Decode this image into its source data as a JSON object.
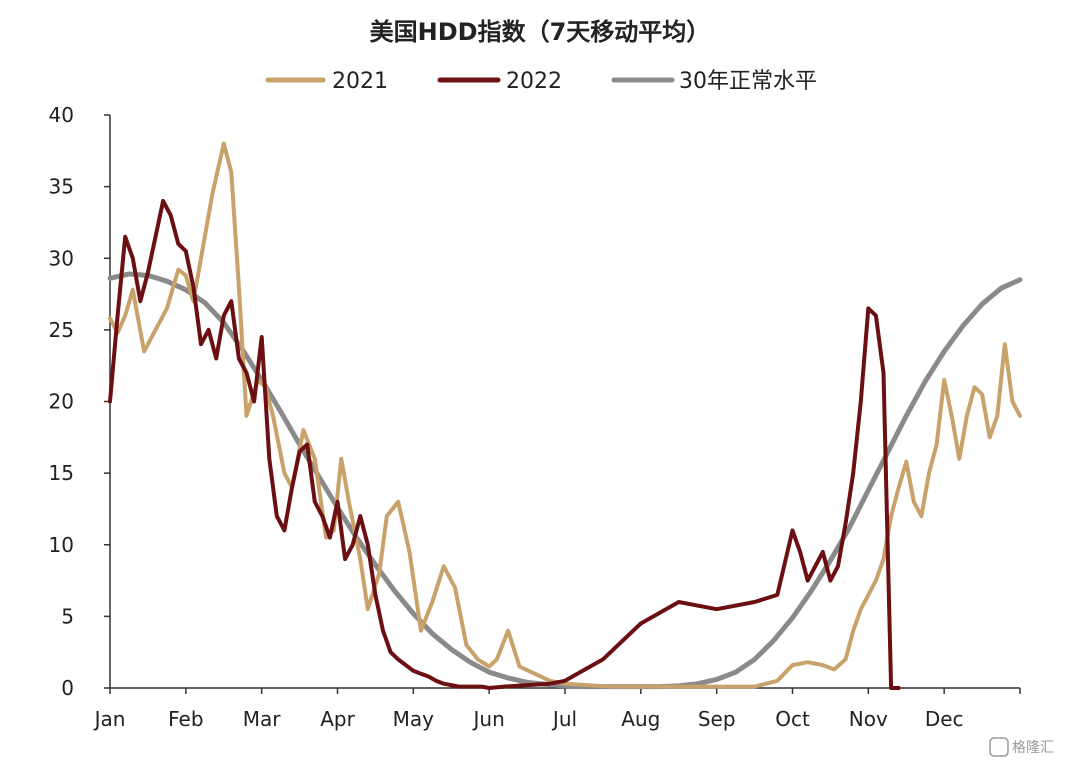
{
  "chart_data": {
    "type": "line",
    "title": "美国HDD指数（7天移动平均）",
    "xlabel": "",
    "ylabel": "",
    "ylim": [
      0,
      40
    ],
    "yticks": [
      "0",
      "5",
      "10",
      "15",
      "20",
      "25",
      "30",
      "35",
      "40"
    ],
    "x_axis": {
      "domain": [
        0,
        12
      ],
      "unit": "month"
    },
    "categories": [
      "Jan",
      "Feb",
      "Mar",
      "Apr",
      "May",
      "Jun",
      "Jul",
      "Aug",
      "Sep",
      "Oct",
      "Nov",
      "Dec"
    ],
    "legend_position": "top-center",
    "grid": false,
    "series": [
      {
        "name": "2021",
        "color": "#c8a26a",
        "x": [
          0.0,
          0.1,
          0.2,
          0.3,
          0.45,
          0.6,
          0.75,
          0.9,
          1.0,
          1.1,
          1.2,
          1.35,
          1.5,
          1.6,
          1.7,
          1.8,
          1.95,
          2.05,
          2.15,
          2.3,
          2.4,
          2.55,
          2.7,
          2.85,
          2.95,
          3.05,
          3.15,
          3.3,
          3.4,
          3.55,
          3.65,
          3.8,
          3.95,
          4.1,
          4.25,
          4.4,
          4.55,
          4.7,
          4.85,
          5.0,
          5.1,
          5.25,
          5.4,
          5.6,
          5.8,
          6.0,
          6.3,
          6.6,
          7.0,
          7.5,
          8.0,
          8.5,
          8.8,
          9.0,
          9.2,
          9.4,
          9.55,
          9.7,
          9.8,
          9.9,
          10.0,
          10.1,
          10.2,
          10.3,
          10.4,
          10.5,
          10.6,
          10.7,
          10.8,
          10.9,
          11.0,
          11.1,
          11.2,
          11.3,
          11.4,
          11.5,
          11.6,
          11.7,
          11.8,
          11.9,
          12.0
        ],
        "values": [
          25.8,
          24.8,
          26.0,
          27.8,
          23.5,
          25.0,
          26.5,
          29.2,
          28.8,
          27.0,
          30.0,
          34.5,
          38.0,
          36.0,
          28.0,
          19.0,
          21.5,
          21.0,
          19.0,
          15.0,
          14.0,
          18.0,
          16.0,
          10.5,
          11.0,
          16.0,
          13.0,
          9.0,
          5.5,
          8.0,
          12.0,
          13.0,
          9.5,
          4.0,
          6.0,
          8.5,
          7.0,
          3.0,
          2.0,
          1.5,
          2.0,
          4.0,
          1.5,
          1.0,
          0.5,
          0.3,
          0.2,
          0.1,
          0.1,
          0.1,
          0.1,
          0.1,
          0.5,
          1.6,
          1.8,
          1.6,
          1.3,
          2.0,
          4.0,
          5.5,
          6.5,
          7.5,
          9.0,
          12.0,
          14.0,
          15.8,
          13.0,
          12.0,
          15.0,
          17.0,
          21.5,
          19.0,
          16.0,
          19.0,
          21.0,
          20.5,
          17.5,
          19.0,
          24.0,
          20.0,
          19.0
        ]
      },
      {
        "name": "2022",
        "color": "#6b0f12",
        "x": [
          0.0,
          0.1,
          0.2,
          0.3,
          0.4,
          0.5,
          0.6,
          0.7,
          0.8,
          0.9,
          1.0,
          1.1,
          1.2,
          1.3,
          1.4,
          1.5,
          1.6,
          1.7,
          1.8,
          1.9,
          2.0,
          2.1,
          2.2,
          2.3,
          2.4,
          2.5,
          2.6,
          2.7,
          2.8,
          2.9,
          3.0,
          3.1,
          3.2,
          3.3,
          3.4,
          3.5,
          3.6,
          3.7,
          3.8,
          3.9,
          4.0,
          4.1,
          4.2,
          4.3,
          4.4,
          4.5,
          4.6,
          4.7,
          4.8,
          4.9,
          5.0,
          5.2,
          5.5,
          5.8,
          6.0,
          6.5,
          7.0,
          7.5,
          8.0,
          8.5,
          8.8,
          9.0,
          9.1,
          9.2,
          9.3,
          9.4,
          9.5,
          9.6,
          9.7,
          9.8,
          9.9,
          10.0,
          10.1,
          10.2,
          10.3,
          10.4,
          10.5,
          10.6,
          10.7,
          10.8,
          10.9,
          11.0,
          11.1,
          11.2,
          11.3,
          11.4,
          11.5
        ],
        "values": [
          20.0,
          26.0,
          31.5,
          30.0,
          27.0,
          29.0,
          31.5,
          34.0,
          33.0,
          31.0,
          30.5,
          28.0,
          24.0,
          25.0,
          23.0,
          26.0,
          27.0,
          23.0,
          22.0,
          20.0,
          24.5,
          16.0,
          12.0,
          11.0,
          14.0,
          16.5,
          17.0,
          13.0,
          12.0,
          10.5,
          13.0,
          9.0,
          10.0,
          12.0,
          10.0,
          6.5,
          4.0,
          2.5,
          2.0,
          1.6,
          1.2,
          1.0,
          0.8,
          0.5,
          0.3,
          0.2,
          0.1,
          0.1,
          0.1,
          0.1,
          0.0,
          0.1,
          0.2,
          0.3,
          0.5,
          2.0,
          4.5,
          6.0,
          5.5,
          6.0,
          6.5,
          11.0,
          9.5,
          7.5,
          8.5,
          9.5,
          7.5,
          8.5,
          11.5,
          15.0,
          20.0,
          26.5,
          26.0,
          22.0,
          0.0,
          0.0,
          0.0,
          0.0,
          0.0,
          0.0,
          0.0,
          0.0,
          0.0,
          0.0,
          0.0,
          0.0,
          0.0
        ]
      },
      {
        "name": "30年正常水平",
        "color": "#8a8a8a",
        "x": [
          0.0,
          0.25,
          0.5,
          0.75,
          1.0,
          1.25,
          1.5,
          1.75,
          2.0,
          2.25,
          2.5,
          2.75,
          3.0,
          3.25,
          3.5,
          3.75,
          4.0,
          4.25,
          4.5,
          4.75,
          5.0,
          5.25,
          5.5,
          5.75,
          6.0,
          6.25,
          6.5,
          6.75,
          7.0,
          7.25,
          7.5,
          7.75,
          8.0,
          8.25,
          8.5,
          8.75,
          9.0,
          9.25,
          9.5,
          9.75,
          10.0,
          10.25,
          10.5,
          10.75,
          11.0,
          11.25,
          11.5,
          11.75,
          12.0
        ],
        "values": [
          28.6,
          28.9,
          28.8,
          28.4,
          27.8,
          26.9,
          25.5,
          23.6,
          21.5,
          19.3,
          17.0,
          14.8,
          12.6,
          10.5,
          8.6,
          6.8,
          5.2,
          3.8,
          2.7,
          1.8,
          1.1,
          0.7,
          0.4,
          0.25,
          0.15,
          0.1,
          0.1,
          0.1,
          0.1,
          0.1,
          0.15,
          0.3,
          0.6,
          1.1,
          2.0,
          3.3,
          4.9,
          6.8,
          8.9,
          11.2,
          13.8,
          16.4,
          19.0,
          21.4,
          23.5,
          25.3,
          26.8,
          27.9,
          28.5
        ]
      }
    ]
  },
  "watermark": "格隆汇"
}
